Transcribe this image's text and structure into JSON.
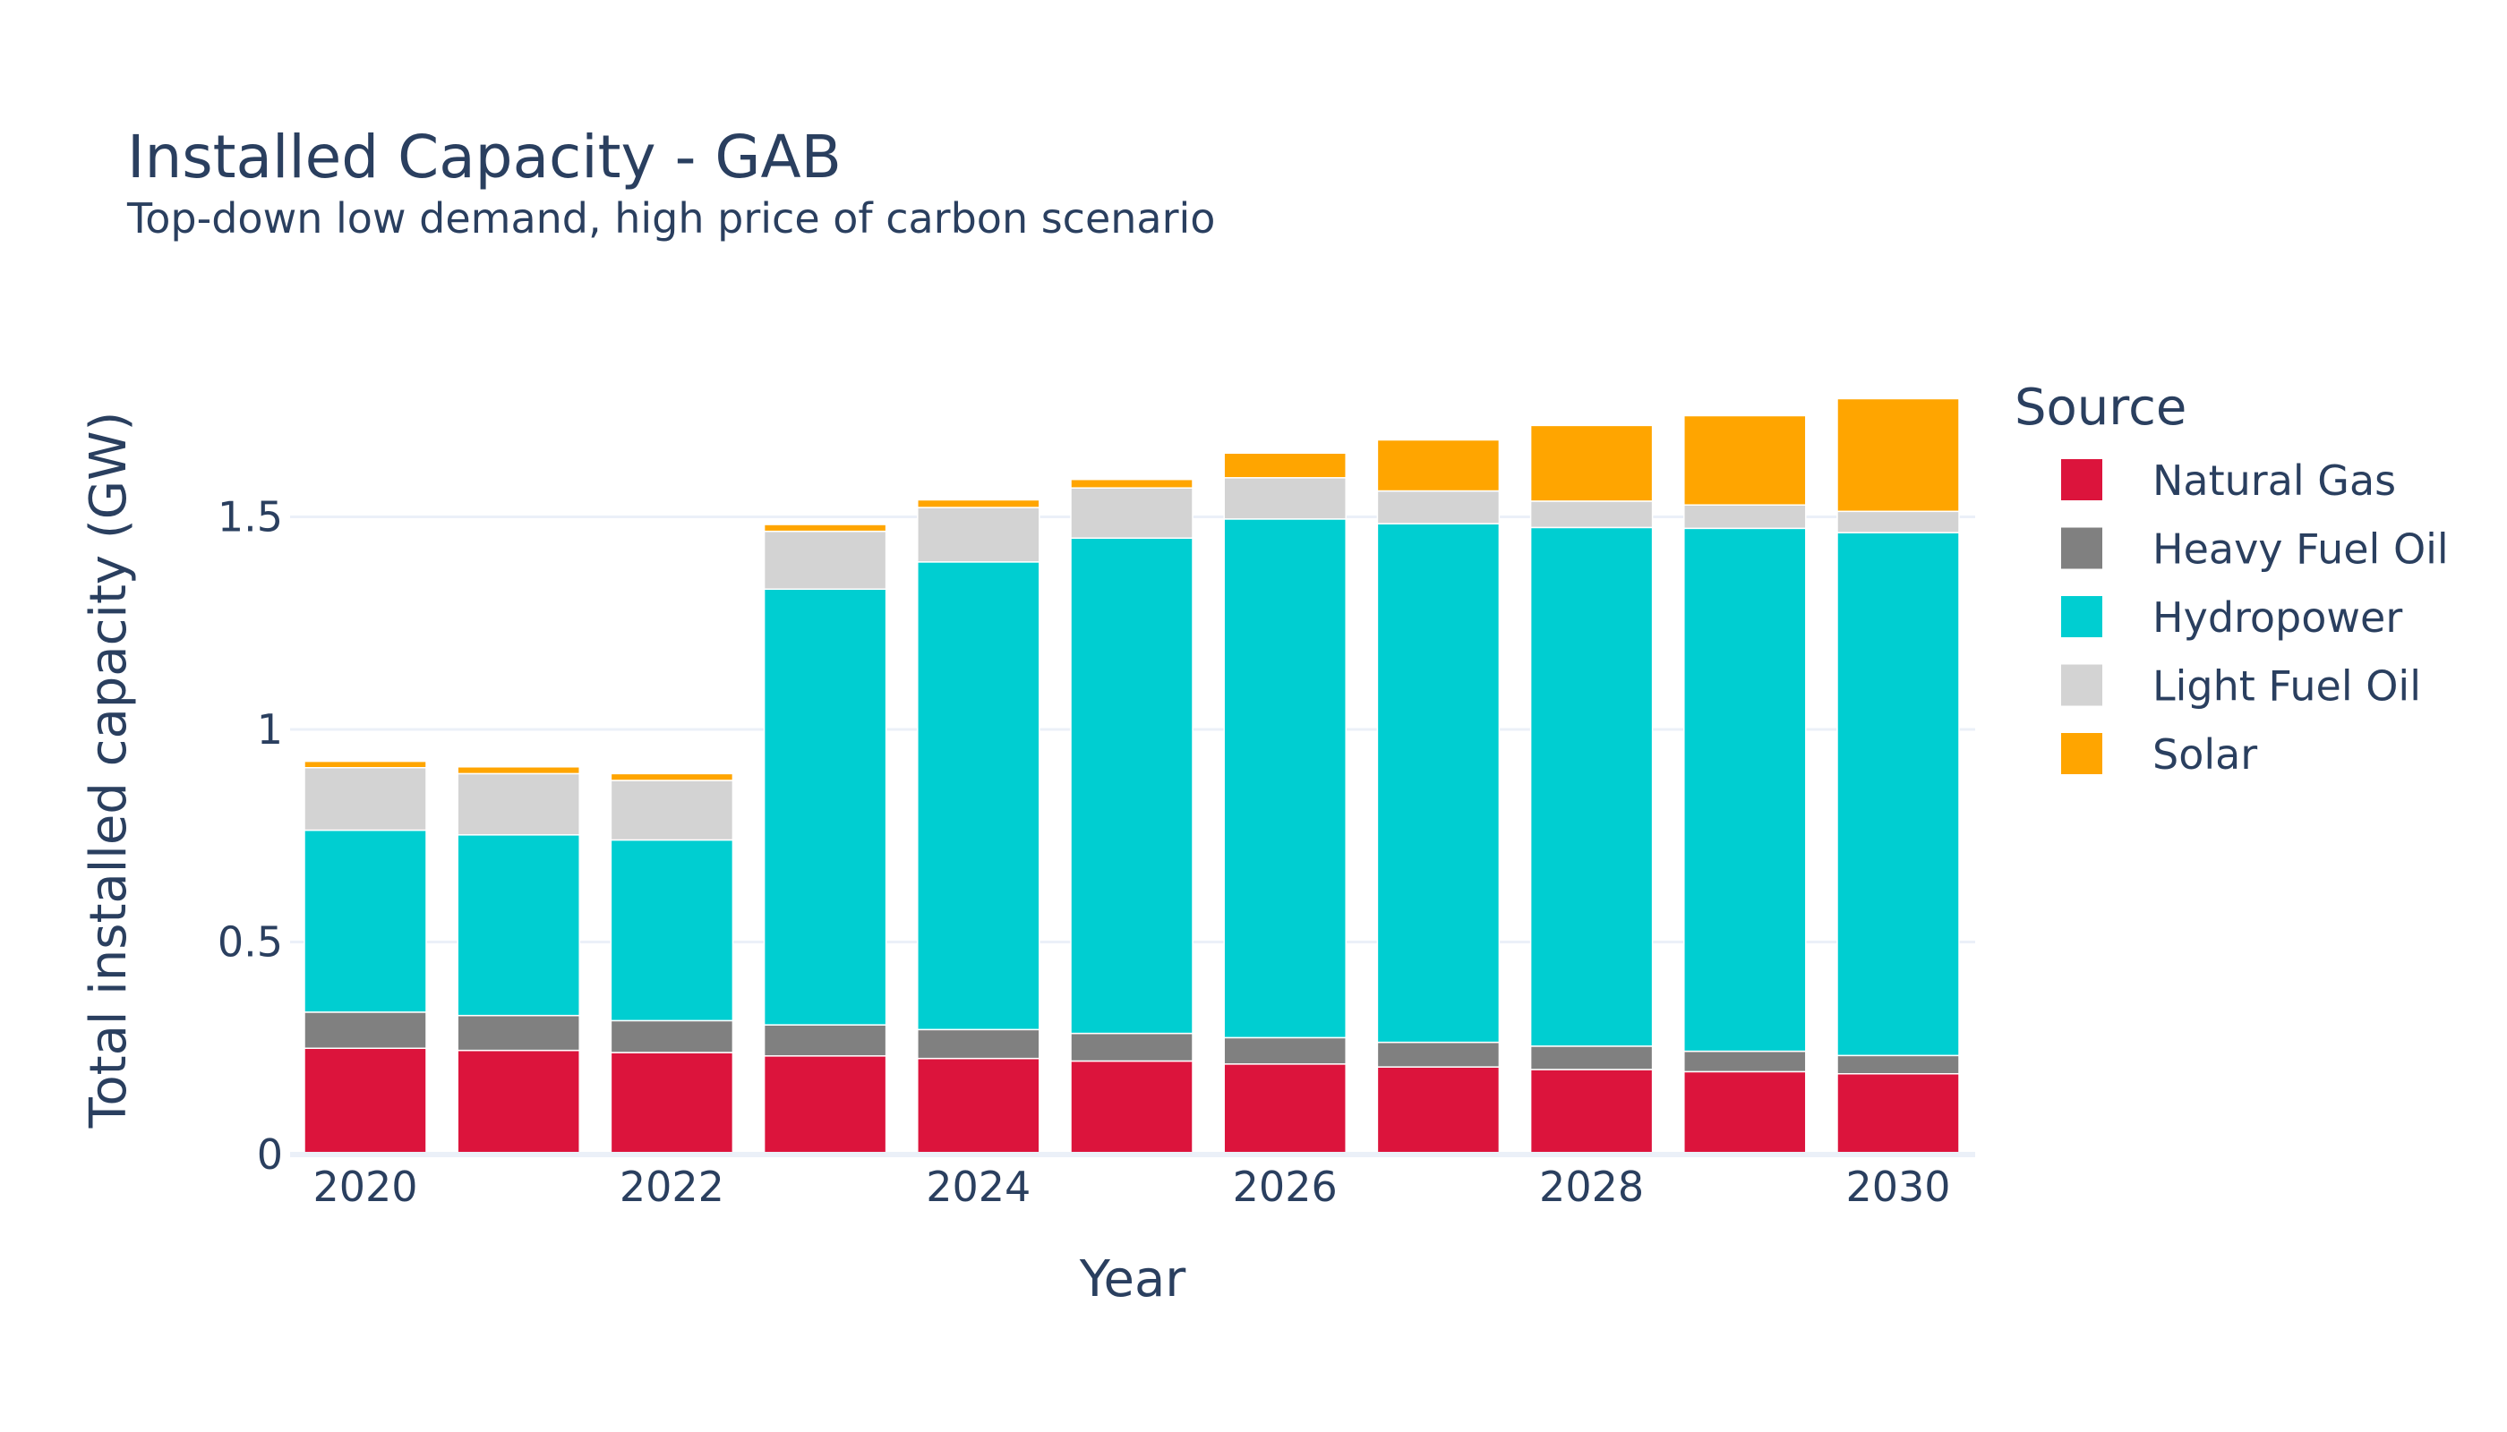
{
  "chart_data": {
    "type": "bar",
    "stacked": true,
    "title": "Installed Capacity - GAB",
    "subtitle": "Top-down low demand, high price of carbon scenario",
    "xlabel": "Year",
    "ylabel": "Total installed capacity (GW)",
    "x": [
      2020,
      2021,
      2022,
      2023,
      2024,
      2025,
      2026,
      2027,
      2028,
      2029,
      2030
    ],
    "x_ticks": [
      "2020",
      "2022",
      "2024",
      "2026",
      "2028",
      "2030"
    ],
    "y_ticks": [
      "0",
      "0.5",
      "1",
      "1.5"
    ],
    "ylim": [
      0,
      1.8
    ],
    "grid": true,
    "legend_title": "Source",
    "legend_position": "right",
    "series": [
      {
        "name": "Natural Gas",
        "color": "#dc143c",
        "values": [
          0.25,
          0.245,
          0.24,
          0.232,
          0.226,
          0.22,
          0.213,
          0.206,
          0.2,
          0.195,
          0.19
        ]
      },
      {
        "name": "Heavy Fuel Oil",
        "color": "#808080",
        "values": [
          0.085,
          0.082,
          0.075,
          0.073,
          0.068,
          0.065,
          0.062,
          0.058,
          0.055,
          0.048,
          0.043
        ]
      },
      {
        "name": "Hydropower",
        "color": "#00ced1",
        "values": [
          0.428,
          0.425,
          0.425,
          1.025,
          1.1,
          1.165,
          1.22,
          1.22,
          1.22,
          1.23,
          1.23
        ]
      },
      {
        "name": "Light Fuel Oil",
        "color": "#d3d3d3",
        "values": [
          0.147,
          0.144,
          0.14,
          0.136,
          0.128,
          0.118,
          0.097,
          0.077,
          0.062,
          0.055,
          0.05
        ]
      },
      {
        "name": "Solar",
        "color": "#ffa500",
        "values": [
          0.015,
          0.016,
          0.016,
          0.016,
          0.018,
          0.02,
          0.058,
          0.12,
          0.178,
          0.21,
          0.265
        ]
      }
    ]
  }
}
